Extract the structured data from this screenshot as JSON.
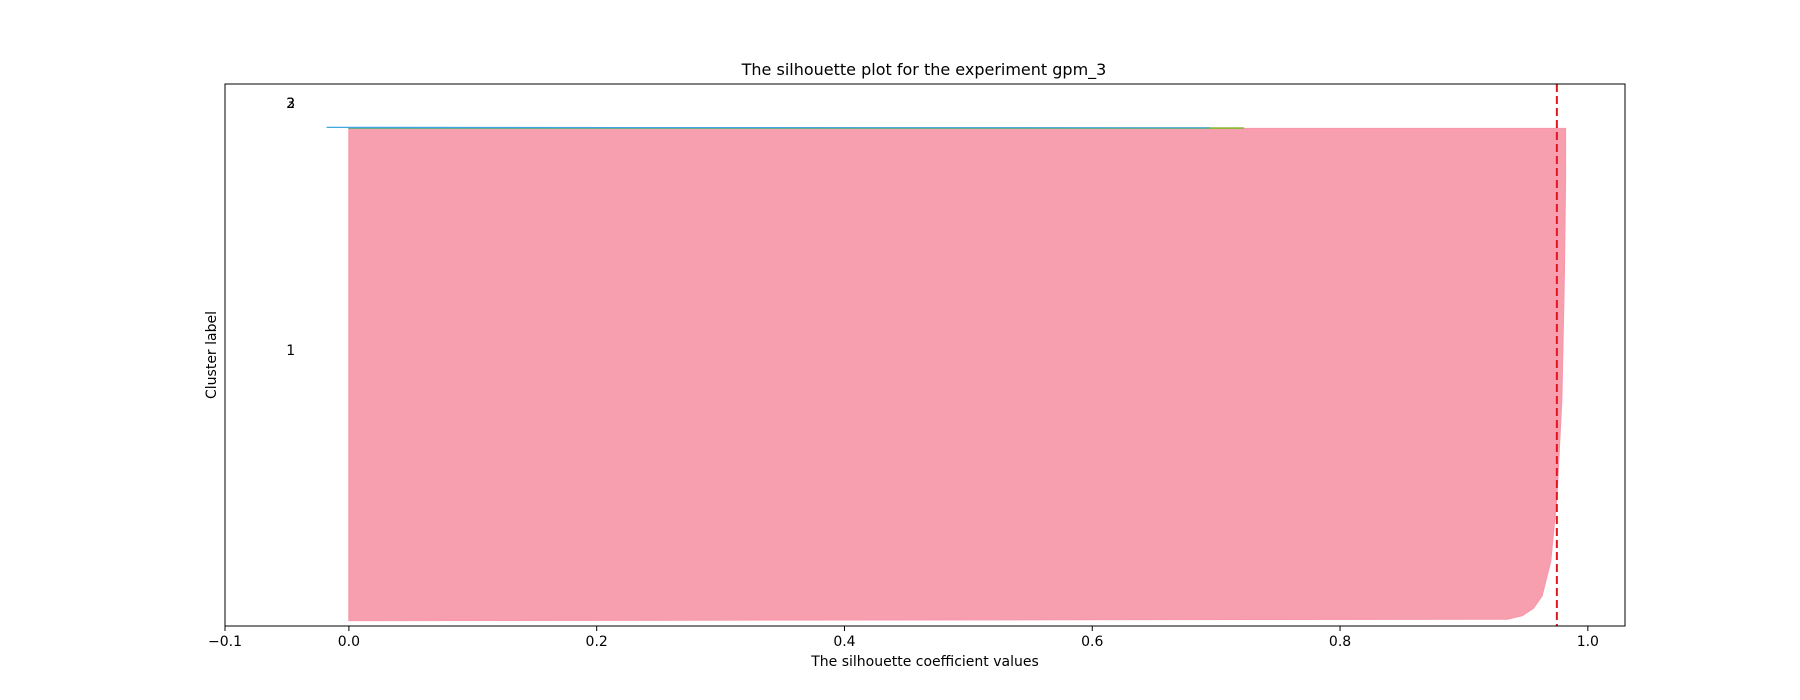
{
  "chart_data": {
    "type": "area",
    "title": "The silhouette plot for the experiment gpm_3",
    "xlabel": "The silhouette coefficient values",
    "ylabel": "Cluster label",
    "xlim": [
      -0.1,
      1.03
    ],
    "xticks": [
      -0.1,
      0.0,
      0.2,
      0.4,
      0.6,
      0.8,
      1.0
    ],
    "xtick_labels": [
      "−0.1",
      "0.0",
      "0.2",
      "0.4",
      "0.6",
      "0.8",
      "1.0"
    ],
    "ylim": [
      0,
      1000
    ],
    "grid": false,
    "legend": "none",
    "average_silhouette": 0.975,
    "average_line_color": "#e3151e",
    "clusters": [
      {
        "label": "1",
        "color": "#f799ab",
        "y_lower": 10,
        "y_upper": 918,
        "label_y": 509,
        "profile": [
          [
            0.0,
            0.982
          ],
          [
            0.1,
            0.982
          ],
          [
            0.3,
            0.981
          ],
          [
            0.55,
            0.979
          ],
          [
            0.75,
            0.975
          ],
          [
            0.88,
            0.97
          ],
          [
            0.95,
            0.963
          ],
          [
            0.975,
            0.956
          ],
          [
            0.99,
            0.947
          ],
          [
            0.997,
            0.935
          ],
          [
            1.0,
            0.0
          ]
        ]
      },
      {
        "label": "2",
        "color": "#8db83a",
        "y_lower": 918,
        "y_upper": 919,
        "label_y": 965,
        "profile": [
          [
            0.0,
            0.722
          ],
          [
            1.0,
            0.722
          ]
        ]
      },
      {
        "label": "3",
        "color": "#3ea6e0",
        "y_lower": 919,
        "y_upper": 920,
        "label_y": 965,
        "profile": [
          [
            0.0,
            -0.018
          ],
          [
            1.0,
            0.695
          ]
        ]
      }
    ]
  }
}
